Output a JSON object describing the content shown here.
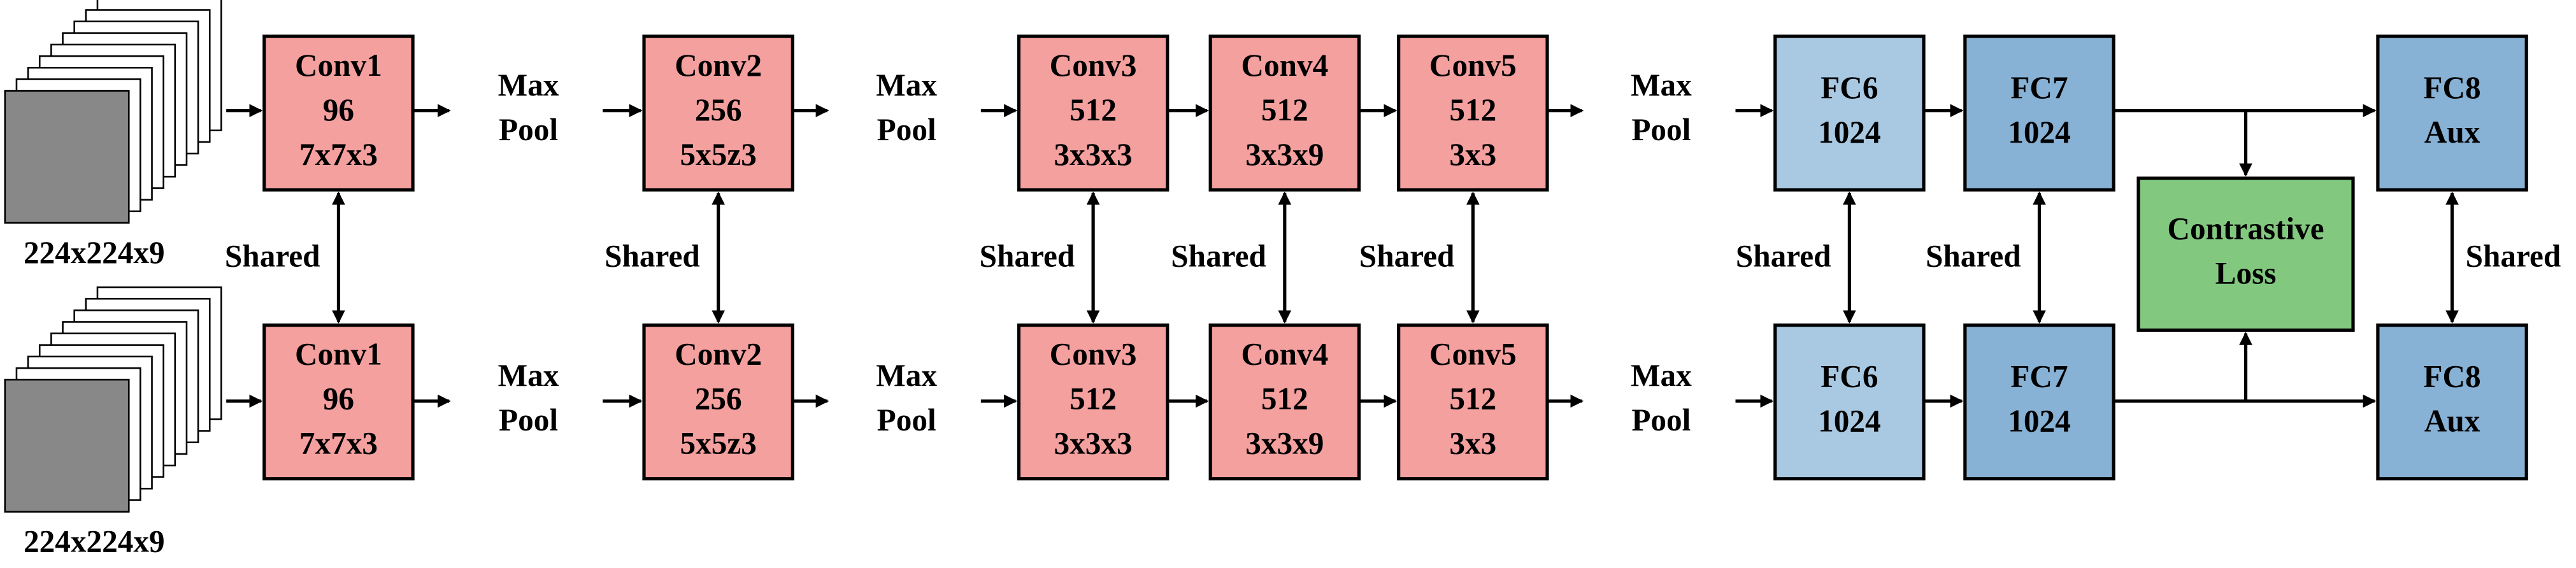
{
  "branches": [
    {
      "input_label": "224x224x9",
      "layers": [
        {
          "lines": [
            "Conv1",
            "96",
            "7x7x3"
          ]
        },
        {
          "lines": [
            "Max",
            "Pool"
          ]
        },
        {
          "lines": [
            "Conv2",
            "256",
            "5x5z3"
          ]
        },
        {
          "lines": [
            "Max",
            "Pool"
          ]
        },
        {
          "lines": [
            "Conv3",
            "512",
            "3x3x3"
          ]
        },
        {
          "lines": [
            "Conv4",
            "512",
            "3x3x9"
          ]
        },
        {
          "lines": [
            "Conv5",
            "512",
            "3x3"
          ]
        },
        {
          "lines": [
            "Max",
            "Pool"
          ]
        },
        {
          "lines": [
            "FC6",
            "1024"
          ]
        },
        {
          "lines": [
            "FC7",
            "1024"
          ]
        },
        {
          "lines": [
            "FC8",
            "Aux"
          ]
        }
      ]
    },
    {
      "input_label": "224x224x9",
      "layers": [
        {
          "lines": [
            "Conv1",
            "96",
            "7x7x3"
          ]
        },
        {
          "lines": [
            "Max",
            "Pool"
          ]
        },
        {
          "lines": [
            "Conv2",
            "256",
            "5x5z3"
          ]
        },
        {
          "lines": [
            "Max",
            "Pool"
          ]
        },
        {
          "lines": [
            "Conv3",
            "512",
            "3x3x3"
          ]
        },
        {
          "lines": [
            "Conv4",
            "512",
            "3x3x9"
          ]
        },
        {
          "lines": [
            "Conv5",
            "512",
            "3x3"
          ]
        },
        {
          "lines": [
            "Max",
            "Pool"
          ]
        },
        {
          "lines": [
            "FC6",
            "1024"
          ]
        },
        {
          "lines": [
            "FC7",
            "1024"
          ]
        },
        {
          "lines": [
            "FC8",
            "Aux"
          ]
        }
      ]
    }
  ],
  "shared": [
    "Shared",
    "Shared",
    "Shared",
    "Shared",
    "Shared",
    "Shared",
    "Shared",
    "Shared"
  ],
  "loss": {
    "lines": [
      "Contrastive",
      "Loss"
    ]
  }
}
